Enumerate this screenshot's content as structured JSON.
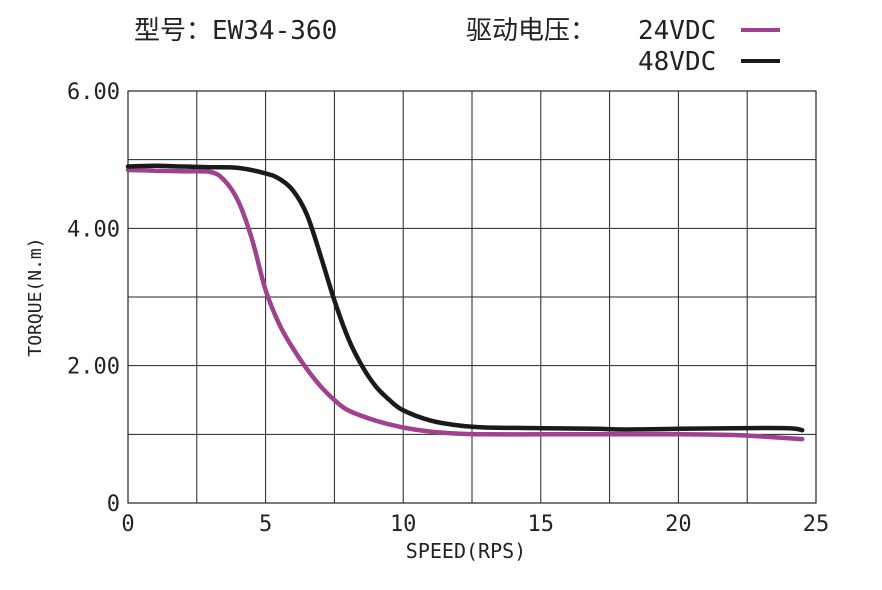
{
  "header": {
    "model_text": "型号：EW34-360",
    "voltage_text": "驱动电压：",
    "legend": [
      {
        "label": "24VDC",
        "color": "#a0408f"
      },
      {
        "label": "48VDC",
        "color": "#1a1a1a"
      }
    ]
  },
  "chart_data": {
    "type": "line",
    "title": "型号：EW34-360",
    "xlabel": "SPEED(RPS)",
    "ylabel": "TORQUE(N.m)",
    "xlim": [
      0,
      25
    ],
    "ylim": [
      0,
      6
    ],
    "x_ticks": [
      "0",
      "5",
      "10",
      "15",
      "20",
      "25"
    ],
    "y_ticks": [
      "0",
      "2.00",
      "4.00",
      "6.00"
    ],
    "grid": true,
    "legend_placement": "top-right",
    "series": [
      {
        "name": "24VDC",
        "color": "#a0408f",
        "x": [
          0,
          1,
          2,
          3,
          3.5,
          4,
          4.5,
          5,
          5.5,
          6,
          6.5,
          7,
          7.5,
          8,
          9,
          10,
          11,
          12,
          13,
          15,
          17,
          20,
          22,
          23,
          24.5
        ],
        "y": [
          4.85,
          4.84,
          4.83,
          4.82,
          4.7,
          4.4,
          3.85,
          3.1,
          2.6,
          2.25,
          1.95,
          1.7,
          1.5,
          1.35,
          1.2,
          1.1,
          1.04,
          1.01,
          1.0,
          1.0,
          1.0,
          1.0,
          0.99,
          0.97,
          0.93
        ]
      },
      {
        "name": "48VDC",
        "color": "#1a1a1a",
        "x": [
          0,
          1,
          2,
          3,
          4,
          5,
          5.5,
          6,
          6.5,
          7,
          7.5,
          8,
          8.5,
          9,
          9.5,
          10,
          11,
          12,
          13,
          15,
          17,
          18,
          20,
          22,
          24,
          24.5
        ],
        "y": [
          4.9,
          4.91,
          4.9,
          4.89,
          4.88,
          4.8,
          4.72,
          4.55,
          4.2,
          3.6,
          2.95,
          2.4,
          2.0,
          1.7,
          1.5,
          1.35,
          1.2,
          1.13,
          1.1,
          1.09,
          1.08,
          1.07,
          1.08,
          1.09,
          1.09,
          1.06
        ]
      }
    ]
  }
}
